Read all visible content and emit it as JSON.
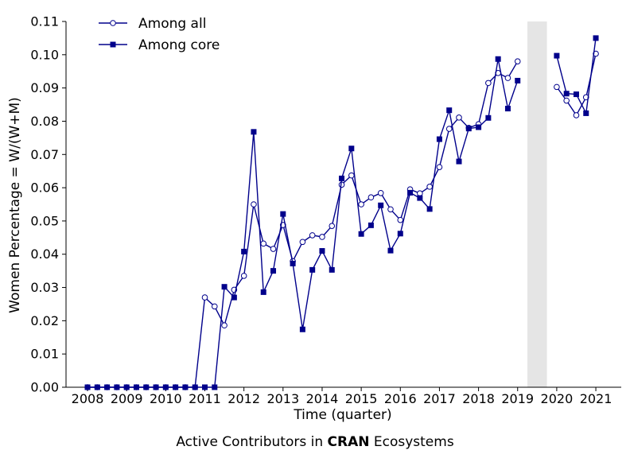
{
  "chart_data": {
    "type": "line",
    "ylabel": "Women Percentage = W/(W+M)",
    "xlabel": "Time (quarter)",
    "caption": {
      "prefix": "Active Contributors in ",
      "bold": "CRAN",
      "suffix": " Ecosystems"
    },
    "xlim": [
      2007.45,
      2021.65
    ],
    "ylim": [
      0,
      0.11
    ],
    "x_ticks": [
      "2008",
      "2009",
      "2010",
      "2011",
      "2012",
      "2013",
      "2014",
      "2015",
      "2016",
      "2017",
      "2018",
      "2019",
      "2020",
      "2021"
    ],
    "y_ticks": [
      "0.00",
      "0.01",
      "0.02",
      "0.03",
      "0.04",
      "0.05",
      "0.06",
      "0.07",
      "0.08",
      "0.09",
      "0.10",
      "0.11"
    ],
    "shaded_region": [
      2019.25,
      2019.75
    ],
    "colors": {
      "line": "#00008b",
      "shade": "#e5e5e5"
    },
    "legend_position": "top-left",
    "series": [
      {
        "name": "Among all",
        "marker": "circle-open",
        "segments": [
          {
            "x": [
              2008.0,
              2008.25,
              2008.5,
              2008.75,
              2009.0,
              2009.25,
              2009.5,
              2009.75,
              2010.0,
              2010.25,
              2010.5,
              2010.75,
              2011.0,
              2011.25,
              2011.5,
              2011.75,
              2012.0,
              2012.25,
              2012.5,
              2012.75,
              2013.0,
              2013.25,
              2013.5,
              2013.75,
              2014.0,
              2014.25,
              2014.5,
              2014.75,
              2015.0,
              2015.25,
              2015.5,
              2015.75,
              2016.0,
              2016.25,
              2016.5,
              2016.75,
              2017.0,
              2017.25,
              2017.5,
              2017.75,
              2018.0,
              2018.25,
              2018.5,
              2018.75,
              2019.0
            ],
            "y": [
              0,
              0,
              0,
              0,
              0,
              0,
              0,
              0,
              0,
              0,
              0,
              0,
              0.027,
              0.0243,
              0.0186,
              0.0293,
              0.0335,
              0.055,
              0.0432,
              0.0416,
              0.0488,
              0.0379,
              0.0437,
              0.0457,
              0.0452,
              0.0485,
              0.0609,
              0.0637,
              0.055,
              0.0571,
              0.0584,
              0.0535,
              0.0503,
              0.0595,
              0.0583,
              0.0603,
              0.0662,
              0.0777,
              0.0811,
              0.078,
              0.0791,
              0.0915,
              0.0945,
              0.093,
              0.098
            ]
          },
          {
            "x": [
              2020.0,
              2020.25,
              2020.5,
              2020.75,
              2021.0
            ],
            "y": [
              0.0903,
              0.0862,
              0.0818,
              0.0872,
              0.1003
            ]
          }
        ]
      },
      {
        "name": "Among core",
        "marker": "square-filled",
        "segments": [
          {
            "x": [
              2008.0,
              2008.25,
              2008.5,
              2008.75,
              2009.0,
              2009.25,
              2009.5,
              2009.75,
              2010.0,
              2010.25,
              2010.5,
              2010.75,
              2011.0,
              2011.25,
              2011.5,
              2011.75,
              2012.0,
              2012.25,
              2012.5,
              2012.75,
              2013.0,
              2013.25,
              2013.5,
              2013.75,
              2014.0,
              2014.25,
              2014.5,
              2014.75,
              2015.0,
              2015.25,
              2015.5,
              2015.75,
              2016.0,
              2016.25,
              2016.5,
              2016.75,
              2017.0,
              2017.25,
              2017.5,
              2017.75,
              2018.0,
              2018.25,
              2018.5,
              2018.75,
              2019.0
            ],
            "y": [
              0,
              0,
              0,
              0,
              0,
              0,
              0,
              0,
              0,
              0,
              0,
              0,
              0,
              0,
              0.0302,
              0.027,
              0.0408,
              0.0768,
              0.0286,
              0.035,
              0.0521,
              0.0372,
              0.0174,
              0.0353,
              0.041,
              0.0353,
              0.0628,
              0.0718,
              0.0461,
              0.0487,
              0.0547,
              0.0411,
              0.0462,
              0.0585,
              0.0569,
              0.0536,
              0.0746,
              0.0833,
              0.0679,
              0.0778,
              0.0782,
              0.081,
              0.0987,
              0.0838,
              0.0922
            ]
          },
          {
            "x": [
              2020.0,
              2020.25,
              2020.5,
              2020.75,
              2021.0
            ],
            "y": [
              0.0997,
              0.0883,
              0.0881,
              0.0824,
              0.105
            ]
          }
        ]
      }
    ]
  }
}
